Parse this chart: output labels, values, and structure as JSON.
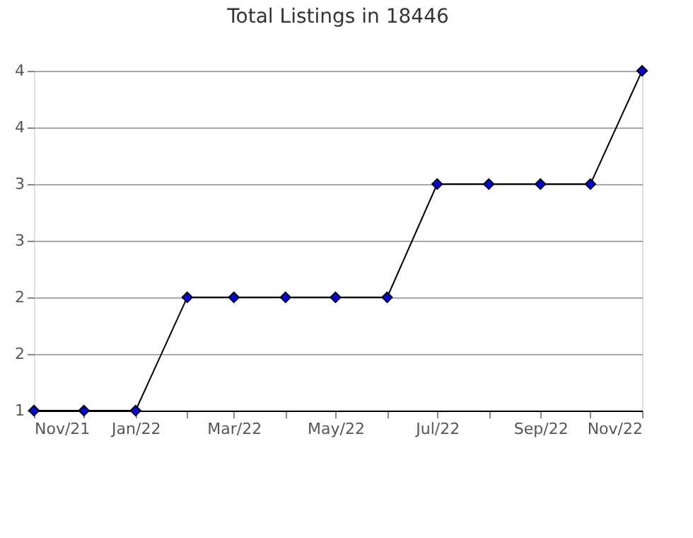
{
  "chart_data": {
    "type": "line",
    "title": "Total Listings in 18446",
    "x": [
      "2021-11",
      "2021-12",
      "2022-01",
      "2022-02",
      "2022-03",
      "2022-04",
      "2022-05",
      "2022-06",
      "2022-07",
      "2022-08",
      "2022-09",
      "2022-10",
      "2022-11"
    ],
    "series": [
      {
        "color": "#0000ff",
        "values": [
          1,
          1,
          1,
          2,
          2,
          2,
          2,
          2,
          3,
          3,
          3,
          3,
          4
        ]
      }
    ],
    "xlim": [
      "2021-11",
      "2022-11"
    ],
    "xticks": [
      {
        "value": "2021-11",
        "label": "Nov/21"
      },
      {
        "value": "2021-12",
        "label": null
      },
      {
        "value": "2022-01",
        "label": "Jan/22"
      },
      {
        "value": "2022-02",
        "label": null
      },
      {
        "value": "2022-03",
        "label": "Mar/22"
      },
      {
        "value": "2022-04",
        "label": null
      },
      {
        "value": "2022-05",
        "label": "May/22"
      },
      {
        "value": "2022-06",
        "label": null
      },
      {
        "value": "2022-07",
        "label": "Jul/22"
      },
      {
        "value": "2022-08",
        "label": null
      },
      {
        "value": "2022-09",
        "label": "Sep/22"
      },
      {
        "value": "2022-10",
        "label": null
      },
      {
        "value": "2022-11",
        "label": "Nov/22"
      }
    ],
    "ylim": [
      1,
      4
    ],
    "yticks": [
      1,
      {
        "value": 1.5,
        "label": "2"
      },
      2,
      {
        "value": 2.5,
        "label": "3"
      },
      3,
      {
        "value": 3.5,
        "label": "4"
      },
      4
    ],
    "grid": "y",
    "marker": "diamond",
    "line_style": "solid",
    "legend": false
  }
}
